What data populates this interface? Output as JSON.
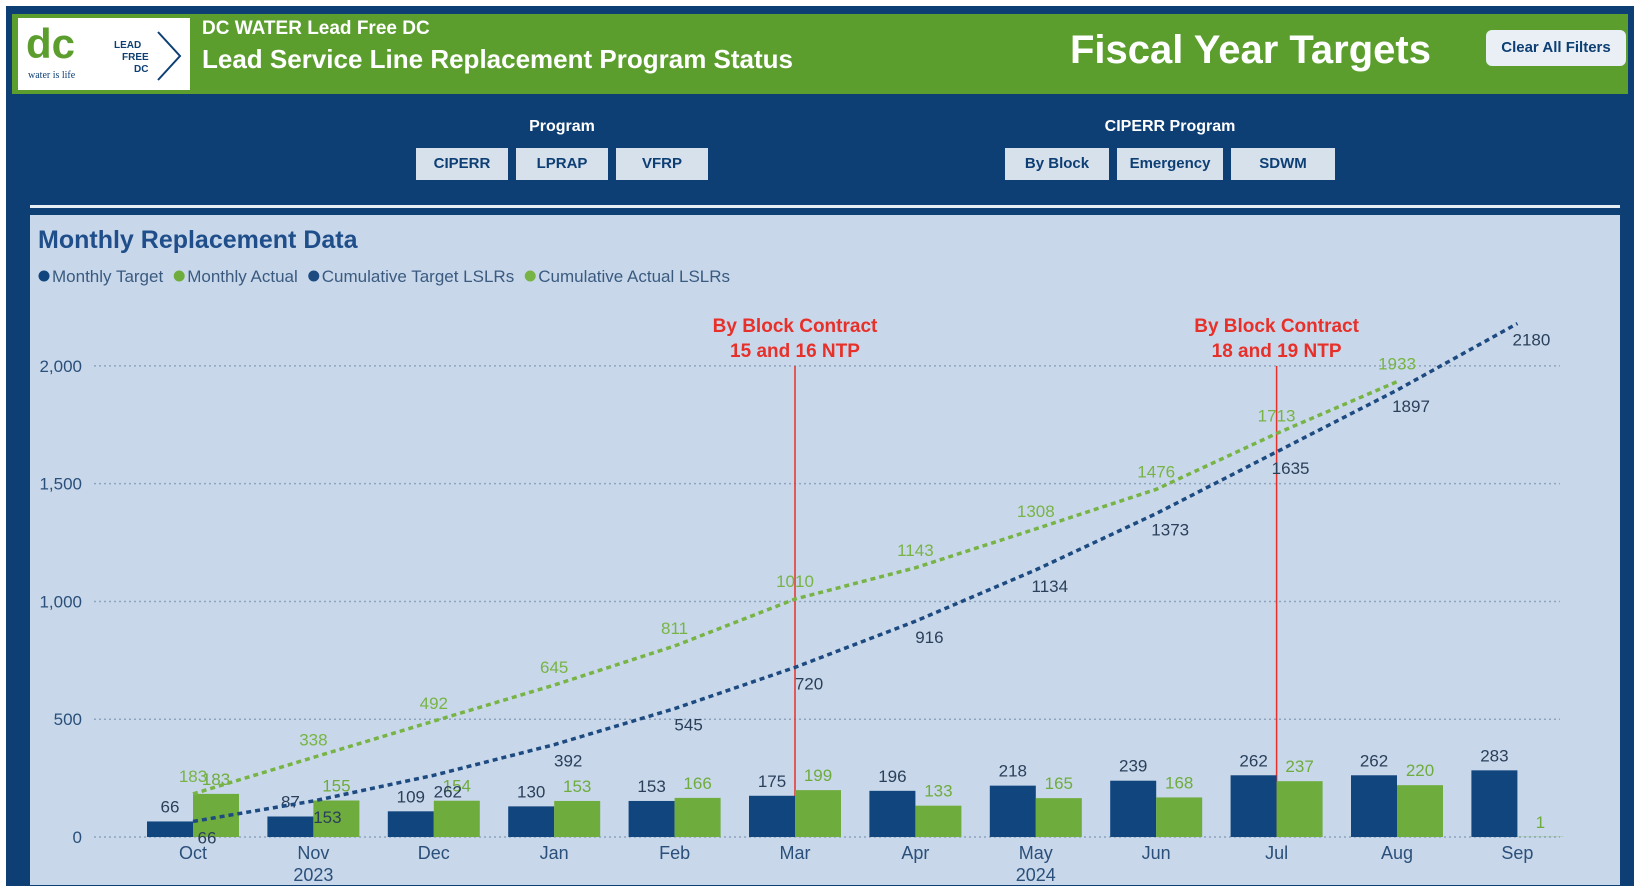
{
  "header": {
    "org": "DC WATER Lead Free DC",
    "title": "Lead Service Line Replacement Program Status",
    "page_title": "Fiscal Year Targets",
    "clear_button": "Clear All Filters",
    "logo": {
      "mark": "dc",
      "tagline": "water is life",
      "badge": [
        "LEAD",
        "FREE",
        "DC"
      ]
    }
  },
  "filters": [
    {
      "title": "Program",
      "options": [
        "CIPERR",
        "LPRAP",
        "VFRP"
      ]
    },
    {
      "title": "CIPERR Program",
      "options": [
        "By Block",
        "Emergency",
        "SDWM"
      ]
    }
  ],
  "chart_data": {
    "type": "bar",
    "title": "Monthly Replacement Data",
    "categories": [
      "Oct",
      "Nov",
      "Dec",
      "Jan",
      "Feb",
      "Mar",
      "Apr",
      "May",
      "Jun",
      "Jul",
      "Aug",
      "Sep"
    ],
    "years": [
      null,
      "2023",
      null,
      null,
      null,
      null,
      null,
      "2024",
      null,
      null,
      null,
      null
    ],
    "series": [
      {
        "name": "Monthly Target",
        "type": "bar",
        "color": "#11457e",
        "values": [
          66,
          87,
          109,
          130,
          153,
          175,
          196,
          218,
          239,
          262,
          262,
          283
        ]
      },
      {
        "name": "Monthly Actual",
        "type": "bar",
        "color": "#6fac3e",
        "values": [
          183,
          155,
          154,
          153,
          166,
          199,
          133,
          165,
          168,
          237,
          220,
          1
        ]
      },
      {
        "name": "Cumulative Target LSLRs",
        "type": "line",
        "color": "#1d4a80",
        "values": [
          66,
          153,
          262,
          392,
          545,
          720,
          916,
          1134,
          1373,
          1635,
          1897,
          2180
        ]
      },
      {
        "name": "Cumulative Actual LSLRs",
        "type": "line",
        "color": "#78b445",
        "values": [
          183,
          338,
          492,
          645,
          811,
          1010,
          1143,
          1308,
          1476,
          1713,
          1933,
          null
        ]
      }
    ],
    "ylim": [
      0,
      2250
    ],
    "yticks": [
      0,
      500,
      {
        "value": 1000,
        "label": "1,000"
      },
      {
        "value": 1500,
        "label": "1,500"
      },
      {
        "value": 2000,
        "label": "2,000"
      }
    ],
    "grid": true,
    "annotations": [
      {
        "x": "Mar",
        "text": [
          "By Block Contract",
          "15 and 16 NTP"
        ]
      },
      {
        "x": "Jul",
        "text": [
          "By Block Contract",
          "18 and 19 NTP"
        ]
      }
    ]
  }
}
